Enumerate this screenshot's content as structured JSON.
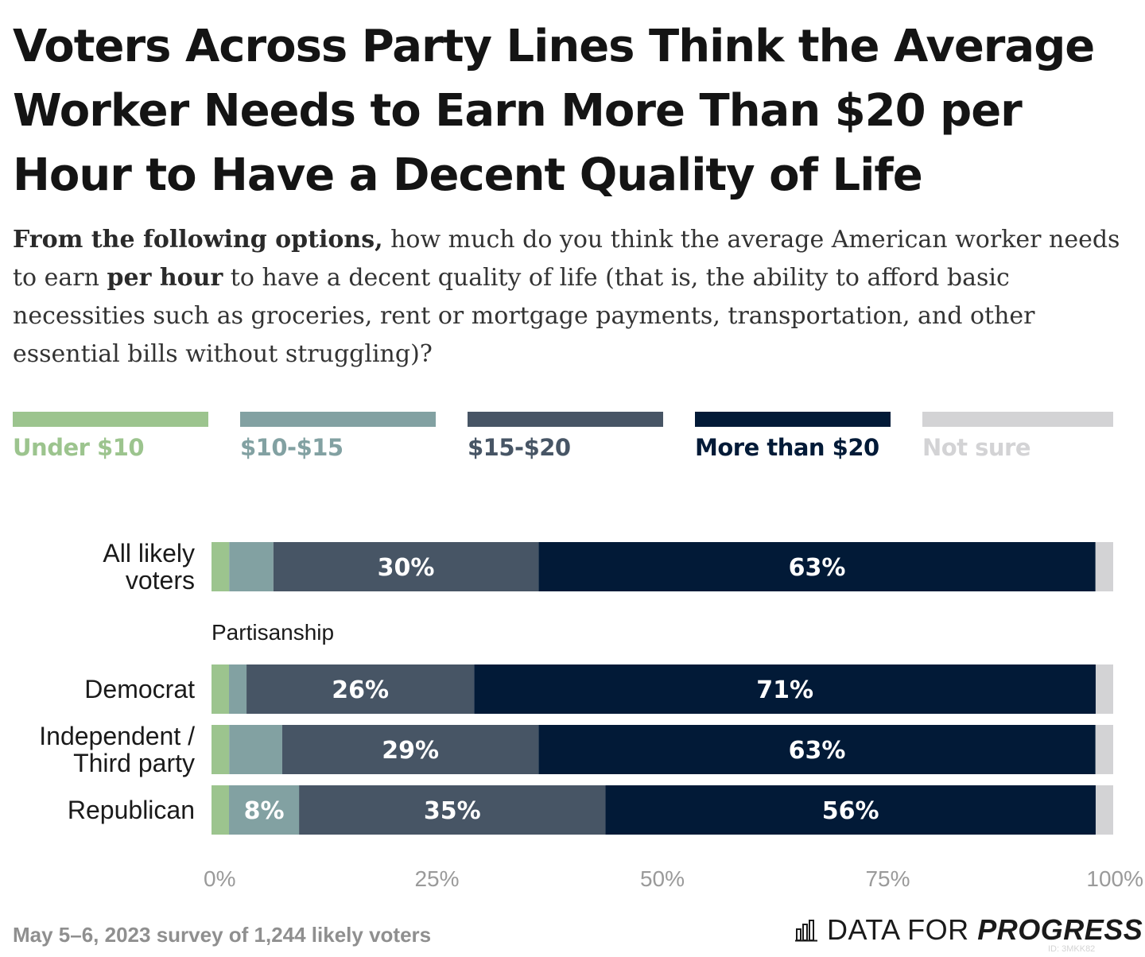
{
  "title": "Voters Across Party Lines Think the Average Worker Needs to Earn More Than $20 per Hour to Have a Decent Quality of Life",
  "subtitle": {
    "part1": "From the following options,",
    "part2": " how much do you think the average American worker needs to earn ",
    "part3": "per hour",
    "part4": " to have a decent quality of life (that is, the ability to afford basic necessities such as groceries, rent or mortgage payments, transportation, and other essential bills without struggling)?"
  },
  "legend": [
    {
      "label": "Under $10",
      "color": "#9cc48e",
      "text_color": "#9cc48e"
    },
    {
      "label": "$10-$15",
      "color": "#82a1a2",
      "text_color": "#82a1a2"
    },
    {
      "label": "$15-$20",
      "color": "#475565",
      "text_color": "#475565"
    },
    {
      "label": "More than $20",
      "color": "#021a37",
      "text_color": "#021a37"
    },
    {
      "label": "Not sure",
      "color": "#d3d3d5",
      "text_color": "#d3d3d5"
    }
  ],
  "chart_data": {
    "type": "bar",
    "orientation": "horizontal",
    "stacked": true,
    "categories": [
      "All likely voters",
      "Democrat",
      "Independent / Third party",
      "Republican"
    ],
    "category_labels": [
      [
        "All likely",
        "voters"
      ],
      [
        "Democrat"
      ],
      [
        "Independent /",
        "Third party"
      ],
      [
        "Republican"
      ]
    ],
    "group_label": "Partisanship",
    "series": [
      {
        "name": "Under $10",
        "values": [
          2,
          2,
          2,
          2
        ],
        "labels": [
          "",
          "",
          "",
          ""
        ]
      },
      {
        "name": "$10-$15",
        "values": [
          5,
          2,
          6,
          8
        ],
        "labels": [
          "",
          "",
          "",
          "8%"
        ]
      },
      {
        "name": "$15-$20",
        "values": [
          30,
          26,
          29,
          35
        ],
        "labels": [
          "30%",
          "26%",
          "29%",
          "35%"
        ]
      },
      {
        "name": "More than $20",
        "values": [
          63,
          71,
          63,
          56
        ],
        "labels": [
          "63%",
          "71%",
          "63%",
          "56%"
        ]
      },
      {
        "name": "Not sure",
        "values": [
          2,
          2,
          2,
          2
        ],
        "labels": [
          "",
          "",
          "",
          ""
        ]
      }
    ],
    "xlim": [
      0,
      100
    ],
    "xticks": [
      0,
      25,
      50,
      75,
      100
    ],
    "xtick_labels": [
      "0%",
      "25%",
      "50%",
      "75%",
      "100%"
    ],
    "grid": false,
    "legend": "top"
  },
  "footer": {
    "note": "May 5–6, 2023 survey of 1,244 likely voters",
    "logo_part1": "DATA FOR ",
    "logo_part2": "PROGRESS",
    "chart_id": "ID: 3MKK82"
  }
}
